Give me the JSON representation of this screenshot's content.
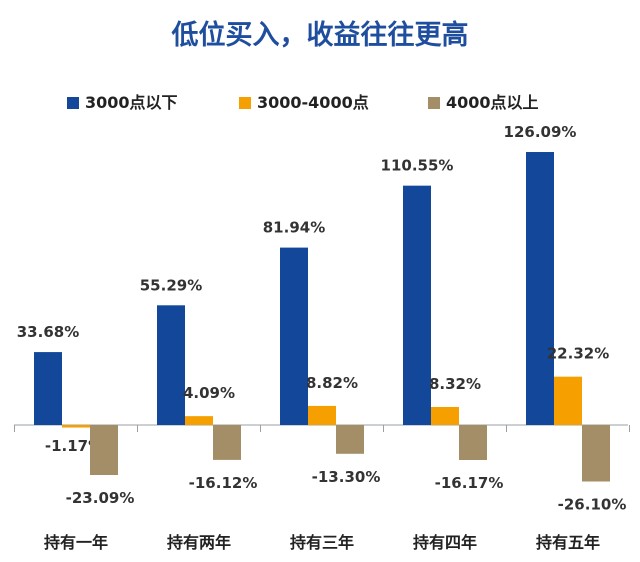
{
  "chart_data": {
    "type": "bar",
    "title": "低位买入，收益往往更高",
    "categories": [
      "持有一年",
      "持有两年",
      "持有三年",
      "持有四年",
      "持有五年"
    ],
    "series": [
      {
        "name": "3000点以下",
        "color": "#12479a",
        "values": [
          33.68,
          55.29,
          81.94,
          110.55,
          126.09
        ],
        "labels": [
          "33.68%",
          "55.29%",
          "81.94%",
          "110.55%",
          "126.09%"
        ]
      },
      {
        "name": "3000-4000点",
        "color": "#f5a000",
        "values": [
          -1.17,
          4.09,
          8.82,
          8.32,
          22.32
        ],
        "labels": [
          "-1.17%",
          "4.09%",
          "8.82%",
          "8.32%",
          "22.32%"
        ]
      },
      {
        "name": "4000点以上",
        "color": "#a38e68",
        "values": [
          -23.09,
          -16.12,
          -13.3,
          -16.17,
          -26.1
        ],
        "labels": [
          "-23.09%",
          "-16.12%",
          "-13.30%",
          "-16.17%",
          "-26.10%"
        ]
      }
    ],
    "xlabel": "",
    "ylabel": "",
    "legend_position": "top",
    "grid": false
  }
}
